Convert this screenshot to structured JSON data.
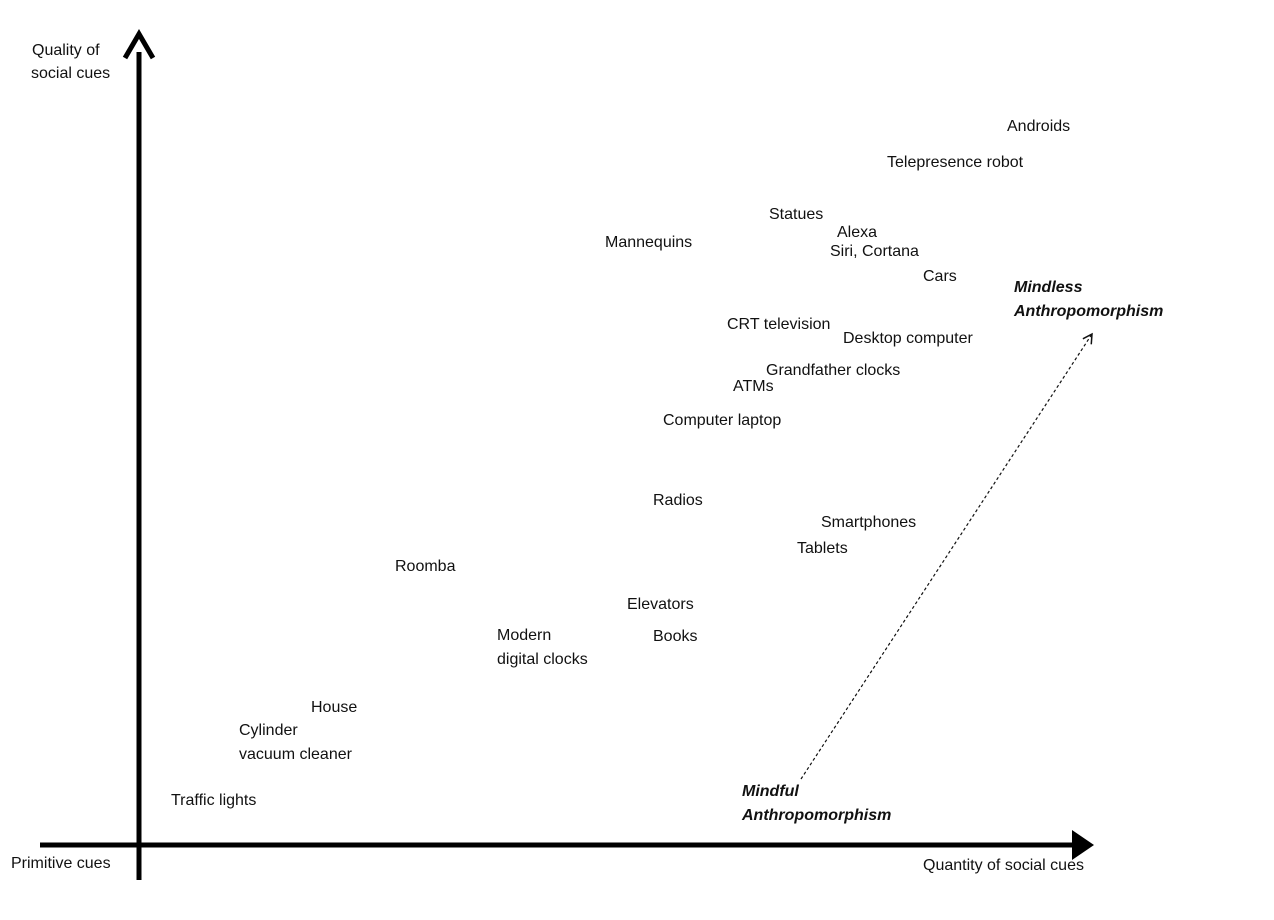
{
  "axes": {
    "y_label_line1": "Quality of",
    "y_label_line2": "social cues",
    "x_label": "Quantity of social cues",
    "origin_label": "Primitive cues"
  },
  "items": {
    "androids": "Androids",
    "telepresence_robot": "Telepresence robot",
    "statues": "Statues",
    "alexa": "Alexa",
    "siri_cortana": "Siri, Cortana",
    "mannequins": "Mannequins",
    "cars": "Cars",
    "crt_television": "CRT television",
    "desktop_computer": "Desktop computer",
    "grandfather_clocks": "Grandfather clocks",
    "atms": "ATMs",
    "computer_laptop": "Computer laptop",
    "radios": "Radios",
    "smartphones": "Smartphones",
    "tablets": "Tablets",
    "roomba": "Roomba",
    "elevators": "Elevators",
    "modern_line1": "Modern",
    "modern_line2": "digital clocks",
    "books": "Books",
    "house": "House",
    "cylinder_line1": "Cylinder",
    "cylinder_line2": "vacuum cleaner",
    "traffic_lights": "Traffic lights"
  },
  "annotations": {
    "mindless_line1": "Mindless",
    "mindless_line2": "Anthropomorphism",
    "mindful_line1": "Mindful",
    "mindful_line2": "Anthropomorphism"
  }
}
